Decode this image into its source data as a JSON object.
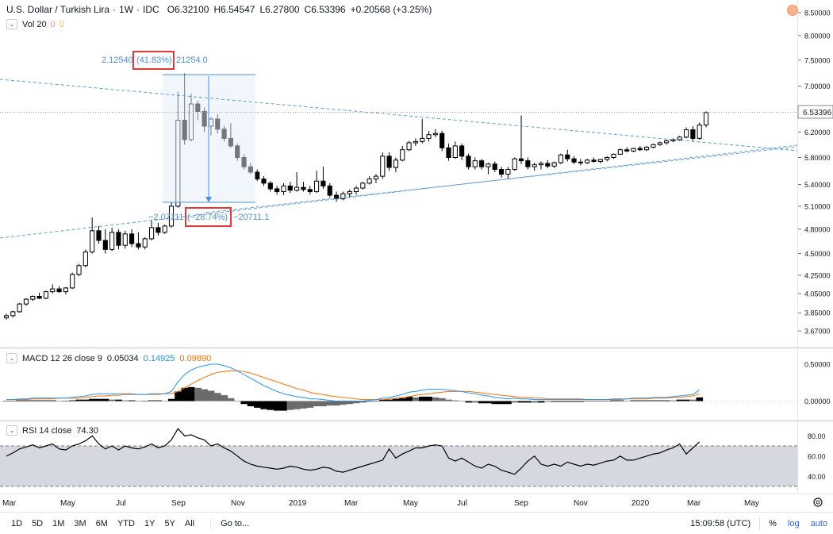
{
  "header": {
    "symbol": "U.S. Dollar / Turkish Lira",
    "interval": "1W",
    "exchange": "IDC",
    "ohlc": {
      "o": "O6.32100",
      "h": "H6.54547",
      "l": "L6.27800",
      "c": "C6.53396",
      "change": "+0.20568 (+3.25%)"
    },
    "vol_indicator": {
      "label": "Vol 20",
      "v1": "0",
      "v2": "0"
    }
  },
  "macd": {
    "label": "MACD 12 26 close 9",
    "v1": "0.05034",
    "v2": "0.14925",
    "v3": "0.09890"
  },
  "rsi": {
    "label": "RSI 14 close",
    "value": "74.30"
  },
  "measure": {
    "up_text_a": "2.12540",
    "up_text_pct": "(41.83%)",
    "up_text_b": "21254.0",
    "down_text_a": "−2.07111",
    "down_text_pct": "(−28.74%)",
    "down_text_b": "−20711.1"
  },
  "price_axis": {
    "ticks": [
      "8.50000",
      "8.00000",
      "7.50000",
      "7.00000",
      "6.20000",
      "5.80000",
      "5.40000",
      "5.10000",
      "4.80000",
      "4.50000",
      "4.25000",
      "4.05000",
      "3.85000",
      "3.67000"
    ],
    "last_price": "6.53396"
  },
  "macd_axis": {
    "ticks": [
      "0.50000",
      "0.00000"
    ]
  },
  "rsi_axis": {
    "ticks": [
      "80.00",
      "60.00",
      "40.00"
    ]
  },
  "time_axis": {
    "labels": [
      "Mar",
      "May",
      "Jul",
      "Sep",
      "Nov",
      "2019",
      "Mar",
      "May",
      "Jul",
      "Sep",
      "Nov",
      "2020",
      "Mar",
      "May"
    ]
  },
  "bottombar": {
    "timeframes": [
      "1D",
      "5D",
      "1M",
      "3M",
      "6M",
      "YTD",
      "1Y",
      "5Y",
      "All"
    ],
    "goto": "Go to...",
    "time": "15:09:58 (UTC)",
    "percent": "%",
    "log": "log",
    "auto": "auto"
  },
  "colors": {
    "up": "#ffffff",
    "down": "#000000",
    "macd_line": "#2196f3",
    "signal_line": "#ff6d00",
    "rsi_line": "#000000",
    "highlight_box": "#e53935",
    "measure": "#4a90d9"
  },
  "chart_data": {
    "type": "candlestick",
    "price_series": [
      {
        "o": 3.8,
        "h": 3.84,
        "l": 3.78,
        "c": 3.82
      },
      {
        "o": 3.82,
        "h": 3.87,
        "l": 3.8,
        "c": 3.86
      },
      {
        "o": 3.86,
        "h": 3.95,
        "l": 3.85,
        "c": 3.94
      },
      {
        "o": 3.94,
        "h": 4.0,
        "l": 3.92,
        "c": 3.99
      },
      {
        "o": 3.99,
        "h": 4.03,
        "l": 3.97,
        "c": 4.02
      },
      {
        "o": 4.02,
        "h": 4.06,
        "l": 3.99,
        "c": 4.0
      },
      {
        "o": 4.0,
        "h": 4.08,
        "l": 3.99,
        "c": 4.07
      },
      {
        "o": 4.07,
        "h": 4.15,
        "l": 4.05,
        "c": 4.1
      },
      {
        "o": 4.1,
        "h": 4.13,
        "l": 4.06,
        "c": 4.07
      },
      {
        "o": 4.07,
        "h": 4.12,
        "l": 4.04,
        "c": 4.11
      },
      {
        "o": 4.11,
        "h": 4.28,
        "l": 4.1,
        "c": 4.26
      },
      {
        "o": 4.26,
        "h": 4.38,
        "l": 4.24,
        "c": 4.36
      },
      {
        "o": 4.36,
        "h": 4.55,
        "l": 4.34,
        "c": 4.52
      },
      {
        "o": 4.52,
        "h": 4.95,
        "l": 4.5,
        "c": 4.78
      },
      {
        "o": 4.78,
        "h": 4.84,
        "l": 4.62,
        "c": 4.66
      },
      {
        "o": 4.66,
        "h": 4.8,
        "l": 4.5,
        "c": 4.55
      },
      {
        "o": 4.55,
        "h": 4.82,
        "l": 4.53,
        "c": 4.76
      },
      {
        "o": 4.76,
        "h": 4.8,
        "l": 4.55,
        "c": 4.6
      },
      {
        "o": 4.6,
        "h": 4.78,
        "l": 4.56,
        "c": 4.74
      },
      {
        "o": 4.74,
        "h": 4.8,
        "l": 4.58,
        "c": 4.62
      },
      {
        "o": 4.62,
        "h": 4.76,
        "l": 4.55,
        "c": 4.58
      },
      {
        "o": 4.58,
        "h": 4.7,
        "l": 4.55,
        "c": 4.68
      },
      {
        "o": 4.68,
        "h": 4.92,
        "l": 4.66,
        "c": 4.82
      },
      {
        "o": 4.82,
        "h": 4.88,
        "l": 4.72,
        "c": 4.76
      },
      {
        "o": 4.76,
        "h": 4.86,
        "l": 4.74,
        "c": 4.84
      },
      {
        "o": 4.84,
        "h": 5.15,
        "l": 4.82,
        "c": 5.1
      },
      {
        "o": 5.1,
        "h": 6.9,
        "l": 5.08,
        "c": 6.4
      },
      {
        "o": 6.4,
        "h": 7.24,
        "l": 6.0,
        "c": 6.08
      },
      {
        "o": 6.08,
        "h": 6.86,
        "l": 6.05,
        "c": 6.68
      },
      {
        "o": 6.68,
        "h": 6.74,
        "l": 6.4,
        "c": 6.55
      },
      {
        "o": 6.55,
        "h": 6.62,
        "l": 6.2,
        "c": 6.3
      },
      {
        "o": 6.3,
        "h": 6.45,
        "l": 6.15,
        "c": 6.42
      },
      {
        "o": 6.42,
        "h": 6.5,
        "l": 6.18,
        "c": 6.25
      },
      {
        "o": 6.25,
        "h": 6.3,
        "l": 6.05,
        "c": 6.1
      },
      {
        "o": 6.1,
        "h": 6.35,
        "l": 5.95,
        "c": 5.98
      },
      {
        "o": 5.98,
        "h": 6.02,
        "l": 5.75,
        "c": 5.8
      },
      {
        "o": 5.8,
        "h": 5.85,
        "l": 5.62,
        "c": 5.66
      },
      {
        "o": 5.66,
        "h": 5.72,
        "l": 5.55,
        "c": 5.58
      },
      {
        "o": 5.58,
        "h": 5.62,
        "l": 5.45,
        "c": 5.48
      },
      {
        "o": 5.48,
        "h": 5.52,
        "l": 5.38,
        "c": 5.42
      },
      {
        "o": 5.42,
        "h": 5.45,
        "l": 5.3,
        "c": 5.34
      },
      {
        "o": 5.34,
        "h": 5.38,
        "l": 5.26,
        "c": 5.3
      },
      {
        "o": 5.3,
        "h": 5.42,
        "l": 5.25,
        "c": 5.38
      },
      {
        "o": 5.38,
        "h": 5.44,
        "l": 5.28,
        "c": 5.32
      },
      {
        "o": 5.32,
        "h": 5.58,
        "l": 5.3,
        "c": 5.36
      },
      {
        "o": 5.36,
        "h": 5.44,
        "l": 5.3,
        "c": 5.33
      },
      {
        "o": 5.33,
        "h": 5.38,
        "l": 5.26,
        "c": 5.3
      },
      {
        "o": 5.3,
        "h": 5.6,
        "l": 5.28,
        "c": 5.45
      },
      {
        "o": 5.45,
        "h": 5.66,
        "l": 5.34,
        "c": 5.38
      },
      {
        "o": 5.38,
        "h": 5.42,
        "l": 5.22,
        "c": 5.25
      },
      {
        "o": 5.25,
        "h": 5.3,
        "l": 5.16,
        "c": 5.2
      },
      {
        "o": 5.2,
        "h": 5.3,
        "l": 5.18,
        "c": 5.27
      },
      {
        "o": 5.27,
        "h": 5.33,
        "l": 5.22,
        "c": 5.3
      },
      {
        "o": 5.3,
        "h": 5.38,
        "l": 5.26,
        "c": 5.35
      },
      {
        "o": 5.35,
        "h": 5.44,
        "l": 5.33,
        "c": 5.42
      },
      {
        "o": 5.42,
        "h": 5.52,
        "l": 5.4,
        "c": 5.48
      },
      {
        "o": 5.48,
        "h": 5.55,
        "l": 5.42,
        "c": 5.52
      },
      {
        "o": 5.52,
        "h": 5.88,
        "l": 5.48,
        "c": 5.82
      },
      {
        "o": 5.82,
        "h": 5.88,
        "l": 5.6,
        "c": 5.65
      },
      {
        "o": 5.65,
        "h": 5.8,
        "l": 5.58,
        "c": 5.76
      },
      {
        "o": 5.76,
        "h": 5.98,
        "l": 5.74,
        "c": 5.92
      },
      {
        "o": 5.92,
        "h": 6.06,
        "l": 5.9,
        "c": 6.03
      },
      {
        "o": 6.03,
        "h": 6.1,
        "l": 5.98,
        "c": 6.05
      },
      {
        "o": 6.05,
        "h": 6.42,
        "l": 6.02,
        "c": 6.1
      },
      {
        "o": 6.1,
        "h": 6.22,
        "l": 6.05,
        "c": 6.16
      },
      {
        "o": 6.16,
        "h": 6.25,
        "l": 6.12,
        "c": 6.18
      },
      {
        "o": 6.18,
        "h": 6.22,
        "l": 5.9,
        "c": 5.95
      },
      {
        "o": 5.95,
        "h": 6.02,
        "l": 5.75,
        "c": 5.8
      },
      {
        "o": 5.8,
        "h": 6.05,
        "l": 5.78,
        "c": 5.98
      },
      {
        "o": 5.98,
        "h": 6.02,
        "l": 5.76,
        "c": 5.82
      },
      {
        "o": 5.82,
        "h": 5.86,
        "l": 5.62,
        "c": 5.66
      },
      {
        "o": 5.66,
        "h": 5.8,
        "l": 5.62,
        "c": 5.75
      },
      {
        "o": 5.75,
        "h": 5.78,
        "l": 5.62,
        "c": 5.66
      },
      {
        "o": 5.66,
        "h": 5.72,
        "l": 5.55,
        "c": 5.7
      },
      {
        "o": 5.7,
        "h": 5.74,
        "l": 5.58,
        "c": 5.62
      },
      {
        "o": 5.62,
        "h": 5.66,
        "l": 5.5,
        "c": 5.55
      },
      {
        "o": 5.55,
        "h": 5.66,
        "l": 5.48,
        "c": 5.62
      },
      {
        "o": 5.62,
        "h": 5.8,
        "l": 5.6,
        "c": 5.78
      },
      {
        "o": 5.78,
        "h": 6.48,
        "l": 5.7,
        "c": 5.75
      },
      {
        "o": 5.75,
        "h": 5.8,
        "l": 5.62,
        "c": 5.66
      },
      {
        "o": 5.66,
        "h": 5.72,
        "l": 5.6,
        "c": 5.69
      },
      {
        "o": 5.69,
        "h": 5.74,
        "l": 5.62,
        "c": 5.71
      },
      {
        "o": 5.71,
        "h": 5.76,
        "l": 5.64,
        "c": 5.67
      },
      {
        "o": 5.67,
        "h": 5.74,
        "l": 5.64,
        "c": 5.72
      },
      {
        "o": 5.72,
        "h": 5.86,
        "l": 5.7,
        "c": 5.84
      },
      {
        "o": 5.84,
        "h": 5.92,
        "l": 5.74,
        "c": 5.78
      },
      {
        "o": 5.78,
        "h": 5.82,
        "l": 5.7,
        "c": 5.73
      },
      {
        "o": 5.73,
        "h": 5.78,
        "l": 5.68,
        "c": 5.72
      },
      {
        "o": 5.72,
        "h": 5.78,
        "l": 5.7,
        "c": 5.76
      },
      {
        "o": 5.76,
        "h": 5.8,
        "l": 5.72,
        "c": 5.74
      },
      {
        "o": 5.74,
        "h": 5.78,
        "l": 5.71,
        "c": 5.77
      },
      {
        "o": 5.77,
        "h": 5.82,
        "l": 5.74,
        "c": 5.8
      },
      {
        "o": 5.8,
        "h": 5.86,
        "l": 5.78,
        "c": 5.85
      },
      {
        "o": 5.85,
        "h": 5.94,
        "l": 5.84,
        "c": 5.92
      },
      {
        "o": 5.92,
        "h": 5.96,
        "l": 5.88,
        "c": 5.9
      },
      {
        "o": 5.9,
        "h": 5.95,
        "l": 5.88,
        "c": 5.94
      },
      {
        "o": 5.94,
        "h": 5.98,
        "l": 5.9,
        "c": 5.92
      },
      {
        "o": 5.92,
        "h": 5.98,
        "l": 5.9,
        "c": 5.96
      },
      {
        "o": 5.96,
        "h": 6.02,
        "l": 5.94,
        "c": 6.0
      },
      {
        "o": 6.0,
        "h": 6.05,
        "l": 5.98,
        "c": 6.03
      },
      {
        "o": 6.03,
        "h": 6.08,
        "l": 6.0,
        "c": 6.06
      },
      {
        "o": 6.06,
        "h": 6.1,
        "l": 6.04,
        "c": 6.08
      },
      {
        "o": 6.08,
        "h": 6.14,
        "l": 6.06,
        "c": 6.12
      },
      {
        "o": 6.12,
        "h": 6.28,
        "l": 6.1,
        "c": 6.24
      },
      {
        "o": 6.24,
        "h": 6.3,
        "l": 6.06,
        "c": 6.1
      },
      {
        "o": 6.1,
        "h": 6.36,
        "l": 6.08,
        "c": 6.32
      },
      {
        "o": 6.32,
        "h": 6.55,
        "l": 6.28,
        "c": 6.53
      }
    ],
    "macd_series": [
      0.02,
      0.02,
      0.03,
      0.03,
      0.04,
      0.04,
      0.04,
      0.04,
      0.04,
      0.04,
      0.05,
      0.06,
      0.07,
      0.09,
      0.1,
      0.1,
      0.1,
      0.1,
      0.1,
      0.1,
      0.09,
      0.09,
      0.1,
      0.1,
      0.1,
      0.13,
      0.26,
      0.36,
      0.42,
      0.46,
      0.48,
      0.5,
      0.5,
      0.48,
      0.45,
      0.41,
      0.36,
      0.31,
      0.26,
      0.21,
      0.17,
      0.13,
      0.1,
      0.08,
      0.06,
      0.05,
      0.03,
      0.03,
      0.02,
      0.01,
      0.0,
      0.0,
      0.0,
      0.0,
      0.0,
      0.01,
      0.02,
      0.04,
      0.05,
      0.07,
      0.09,
      0.12,
      0.13,
      0.15,
      0.16,
      0.16,
      0.16,
      0.15,
      0.14,
      0.13,
      0.11,
      0.1,
      0.08,
      0.07,
      0.05,
      0.04,
      0.03,
      0.04,
      0.03,
      0.03,
      0.02,
      0.02,
      0.02,
      0.02,
      0.02,
      0.02,
      0.02,
      0.02,
      0.02,
      0.02,
      0.02,
      0.02,
      0.03,
      0.03,
      0.03,
      0.04,
      0.04,
      0.04,
      0.05,
      0.05,
      0.05,
      0.06,
      0.07,
      0.08,
      0.09,
      0.15
    ],
    "signal_series": [
      0.02,
      0.02,
      0.02,
      0.02,
      0.03,
      0.03,
      0.03,
      0.03,
      0.04,
      0.04,
      0.04,
      0.04,
      0.05,
      0.06,
      0.07,
      0.07,
      0.08,
      0.08,
      0.09,
      0.09,
      0.09,
      0.09,
      0.09,
      0.09,
      0.1,
      0.1,
      0.13,
      0.18,
      0.23,
      0.28,
      0.32,
      0.36,
      0.39,
      0.4,
      0.41,
      0.41,
      0.4,
      0.38,
      0.35,
      0.32,
      0.29,
      0.26,
      0.23,
      0.2,
      0.17,
      0.15,
      0.12,
      0.1,
      0.09,
      0.07,
      0.06,
      0.05,
      0.04,
      0.03,
      0.02,
      0.02,
      0.02,
      0.02,
      0.03,
      0.04,
      0.05,
      0.06,
      0.08,
      0.09,
      0.1,
      0.11,
      0.12,
      0.13,
      0.13,
      0.13,
      0.13,
      0.12,
      0.11,
      0.1,
      0.09,
      0.08,
      0.07,
      0.06,
      0.05,
      0.05,
      0.04,
      0.04,
      0.03,
      0.03,
      0.03,
      0.03,
      0.03,
      0.03,
      0.02,
      0.02,
      0.02,
      0.02,
      0.02,
      0.02,
      0.03,
      0.03,
      0.03,
      0.03,
      0.04,
      0.04,
      0.04,
      0.05,
      0.05,
      0.06,
      0.07,
      0.1
    ],
    "rsi_series": [
      60,
      63,
      67,
      69,
      71,
      68,
      70,
      72,
      67,
      66,
      70,
      72,
      75,
      80,
      72,
      67,
      70,
      66,
      70,
      68,
      67,
      69,
      72,
      68,
      70,
      76,
      87,
      80,
      81,
      78,
      76,
      70,
      72,
      68,
      65,
      60,
      55,
      52,
      50,
      49,
      48,
      47,
      48,
      50,
      49,
      47,
      46,
      47,
      49,
      48,
      45,
      44,
      46,
      48,
      50,
      52,
      54,
      56,
      67,
      58,
      62,
      65,
      68,
      68,
      70,
      71,
      70,
      58,
      55,
      58,
      54,
      50,
      48,
      52,
      50,
      46,
      44,
      42,
      48,
      55,
      60,
      52,
      50,
      52,
      50,
      54,
      52,
      50,
      52,
      51,
      53,
      55,
      56,
      60,
      56,
      56,
      58,
      60,
      62,
      63,
      66,
      68,
      72,
      62,
      68,
      74
    ],
    "xlabel": "",
    "ylabel": "",
    "rsi_band": [
      30,
      70
    ]
  }
}
